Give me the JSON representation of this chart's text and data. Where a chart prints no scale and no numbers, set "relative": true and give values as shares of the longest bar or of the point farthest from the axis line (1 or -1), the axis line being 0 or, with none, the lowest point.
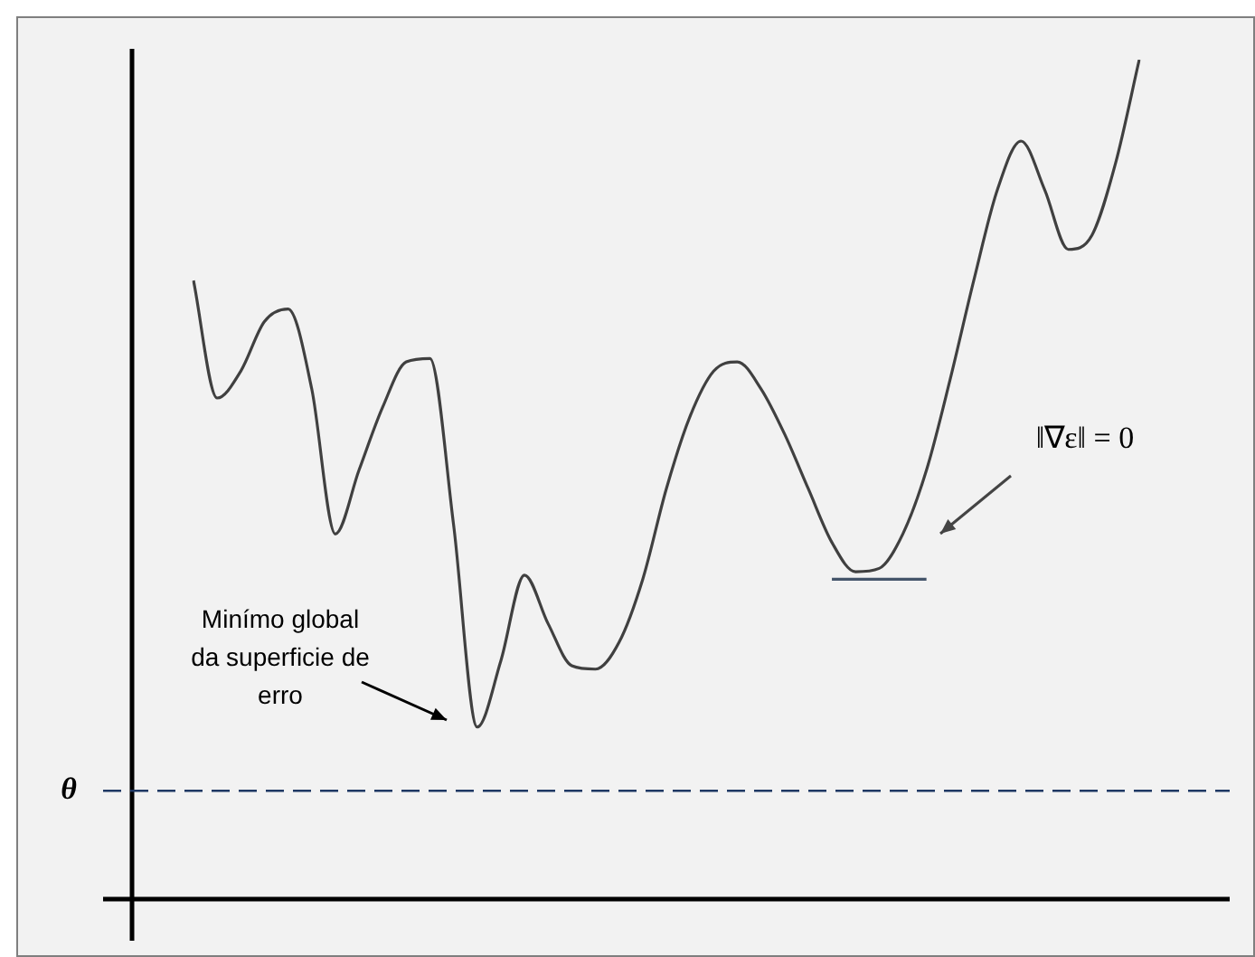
{
  "chart_data": {
    "type": "line",
    "relative": true,
    "categories": [
      null,
      null,
      null,
      null,
      null,
      null,
      null,
      null,
      null,
      null,
      null,
      null,
      null,
      null,
      null,
      null,
      null,
      null,
      null,
      null,
      null,
      null,
      null,
      null,
      null,
      null,
      null,
      null,
      null,
      null,
      null,
      null,
      null,
      null,
      null,
      null,
      null,
      null,
      null,
      null,
      null
    ],
    "series": [
      {
        "color": "#404040",
        "values": [
          0.737,
          0.597,
          0.629,
          0.688,
          0.703,
          0.608,
          0.435,
          0.511,
          0.586,
          0.64,
          0.644,
          0.446,
          0.205,
          0.284,
          0.386,
          0.328,
          0.278,
          0.274,
          0.306,
          0.381,
          0.489,
          0.575,
          0.629,
          0.64,
          0.608,
          0.554,
          0.489,
          0.425,
          0.39,
          0.394,
          0.435,
          0.511,
          0.619,
          0.737,
          0.845,
          0.903,
          0.845,
          0.774,
          0.791,
          0.877,
          1
        ]
      },
      {
        "color": "#44546a",
        "values": [
          null,
          null,
          null,
          null,
          null,
          null,
          null,
          null,
          null,
          null,
          null,
          null,
          null,
          null,
          null,
          null,
          null,
          null,
          null,
          null,
          null,
          null,
          null,
          null,
          null,
          null,
          null,
          0.381,
          0.381,
          0.381,
          0.381,
          0.381,
          null,
          null,
          null,
          null,
          null,
          null,
          null,
          null,
          null
        ]
      }
    ],
    "ref_lines": [
      {
        "axis": "y",
        "value": 0.129,
        "label": "θ",
        "color": "#1f3864",
        "line_style": "dashed"
      }
    ],
    "annotations": [
      "Minímo global da superficie de erro",
      "‖∇ε‖ = 0"
    ],
    "marker": "none",
    "line_style": "solid"
  }
}
